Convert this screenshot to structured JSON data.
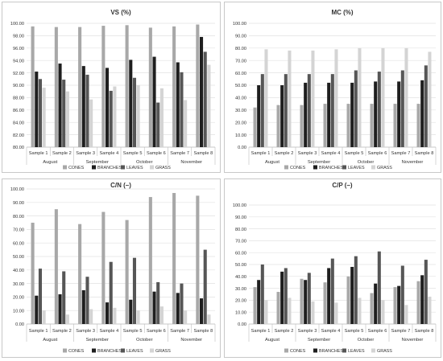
{
  "legend_labels": [
    "CONES",
    "BRANCHES",
    "LEAVES",
    "GRASS"
  ],
  "colors": {
    "CONES": "#a8a8a8",
    "BRANCHES": "#1e1e1e",
    "LEAVES": "#565656",
    "GRASS": "#d4d4d4"
  },
  "chart_data": [
    {
      "type": "bar",
      "title": "VS (%)",
      "categories": [
        "Sample 1",
        "Sample 2",
        "Sample 3",
        "Sample 4",
        "Sample 5",
        "Sample 6",
        "Sample 7",
        "Sample 8"
      ],
      "groups": [
        "August",
        "September",
        "October",
        "November"
      ],
      "ylim": [
        80,
        100
      ],
      "yticks": [
        "80.00",
        "82.00",
        "84.00",
        "86.00",
        "88.00",
        "90.00",
        "92.00",
        "94.00",
        "96.00",
        "98.00",
        "100.00"
      ],
      "grid": true,
      "legend_position": "bottom",
      "series": [
        {
          "name": "CONES",
          "values": [
            99.5,
            99.4,
            99.4,
            99.6,
            99.7,
            99.3,
            99.5,
            99.8
          ]
        },
        {
          "name": "BRANCHES",
          "values": [
            92.2,
            93.5,
            93.1,
            92.8,
            94.1,
            94.6,
            93.7,
            97.8
          ]
        },
        {
          "name": "LEAVES",
          "values": [
            91.0,
            90.9,
            91.7,
            89.1,
            91.2,
            87.2,
            92.1,
            95.4
          ]
        },
        {
          "name": "GRASS",
          "values": [
            89.6,
            89.0,
            87.7,
            89.8,
            90.0,
            89.5,
            87.6,
            93.3
          ]
        }
      ]
    },
    {
      "type": "bar",
      "title": "MC (%)",
      "categories": [
        "Sample 1",
        "Sample 2",
        "Sample 3",
        "Sample 4",
        "Sample 5",
        "Sample 6",
        "Sample 7",
        "Sample 8"
      ],
      "groups": [
        "August",
        "September",
        "October",
        "November"
      ],
      "ylim": [
        0,
        100
      ],
      "yticks": [
        "0.00",
        "10.00",
        "20.00",
        "30.00",
        "40.00",
        "50.00",
        "60.00",
        "70.00",
        "80.00",
        "90.00",
        "100.00"
      ],
      "grid": true,
      "legend_position": "bottom",
      "series": [
        {
          "name": "CONES",
          "values": [
            32,
            34,
            34,
            35,
            35,
            35,
            35,
            35
          ]
        },
        {
          "name": "BRANCHES",
          "values": [
            50,
            50,
            52,
            52,
            52,
            53,
            53,
            54
          ]
        },
        {
          "name": "LEAVES",
          "values": [
            59,
            59,
            59,
            59,
            62,
            61,
            62,
            66
          ]
        },
        {
          "name": "GRASS",
          "values": [
            79,
            78,
            78,
            79,
            80,
            80,
            80,
            77
          ]
        }
      ]
    },
    {
      "type": "bar",
      "title": "C/N (–)",
      "categories": [
        "Sample 1",
        "Sample 2",
        "Sample 3",
        "Sample 4",
        "Sample 5",
        "Sample 6",
        "Sample 7",
        "Sample 8"
      ],
      "groups": [
        "August",
        "September",
        "October",
        "November"
      ],
      "ylim": [
        0,
        100
      ],
      "yticks": [
        "0.00",
        "10.00",
        "20.00",
        "30.00",
        "40.00",
        "50.00",
        "60.00",
        "70.00",
        "80.00",
        "90.00",
        "100.00"
      ],
      "grid": true,
      "legend_position": "bottom",
      "series": [
        {
          "name": "CONES",
          "values": [
            75,
            85,
            74,
            83,
            77,
            94,
            97,
            95
          ]
        },
        {
          "name": "BRANCHES",
          "values": [
            21,
            22,
            25,
            16,
            18,
            24,
            23,
            19
          ]
        },
        {
          "name": "LEAVES",
          "values": [
            41,
            39,
            35,
            46,
            49,
            31,
            30,
            55
          ]
        },
        {
          "name": "GRASS",
          "values": [
            10,
            7,
            11,
            12,
            10,
            13,
            10,
            7
          ]
        }
      ]
    },
    {
      "type": "bar",
      "title": "C/P (–)",
      "categories": [
        "Sample 1",
        "Sample 2",
        "Sample 3",
        "Sample 4",
        "Sample 5",
        "Sample 6",
        "Sample 7",
        "Sample 8"
      ],
      "groups": [
        "August",
        "September",
        "October",
        "November"
      ],
      "ylim": [
        0,
        100
      ],
      "yticks": [
        "0.00",
        "10.00",
        "20.00",
        "30.00",
        "40.00",
        "50.00",
        "60.00",
        "70.00",
        "80.00",
        "90.00",
        "100.00"
      ],
      "grid": true,
      "legend_position": "bottom",
      "series": [
        {
          "name": "CONES",
          "values": [
            31,
            27,
            38,
            35,
            40,
            26,
            31,
            36
          ]
        },
        {
          "name": "BRANCHES",
          "values": [
            37,
            44,
            37,
            47,
            48,
            34,
            32,
            41
          ]
        },
        {
          "name": "LEAVES",
          "values": [
            50,
            47,
            43,
            55,
            57,
            61,
            49,
            54
          ]
        },
        {
          "name": "GRASS",
          "values": [
            20,
            22,
            19,
            18,
            22,
            20,
            16,
            23
          ]
        }
      ]
    }
  ]
}
